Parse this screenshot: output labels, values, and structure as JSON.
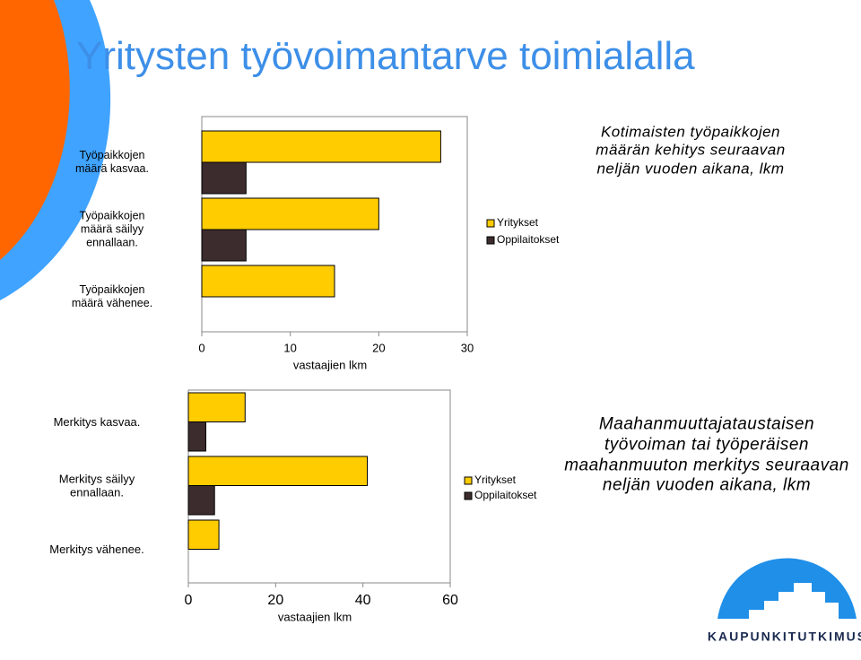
{
  "title": "Yritysten työvoimantarve toimialalla",
  "logo": "KAUPUNKITUTKIMUS",
  "chart_data": [
    {
      "type": "bar",
      "orientation": "horizontal",
      "title": "Kotimaisten työpaikkojen määrän kehitys seuraavan neljän vuoden aikana, lkm",
      "categories": [
        "Työpaikkojen määrä kasvaa.",
        "Työpaikkojen määrä säilyy ennallaan.",
        "Työpaikkojen määrä vähenee."
      ],
      "series": [
        {
          "name": "Yritykset",
          "color": "#ffcc00",
          "values": [
            27,
            20,
            15
          ]
        },
        {
          "name": "Oppilaitokset",
          "color": "#3d2c2e",
          "values": [
            5,
            5,
            0
          ]
        }
      ],
      "xlabel": "vastaajien lkm",
      "xlim": [
        0,
        30
      ],
      "xticks": [
        0,
        10,
        20,
        30
      ],
      "legend": "right"
    },
    {
      "type": "bar",
      "orientation": "horizontal",
      "title": "Maahanmuuttajataustaisen työvoiman tai työperäisen maahanmuuton merkitys seuraavan neljän vuoden aikana, lkm",
      "categories": [
        "Merkitys kasvaa.",
        "Merkitys säilyy ennallaan.",
        "Merkitys vähenee."
      ],
      "series": [
        {
          "name": "Yritykset",
          "color": "#ffcc00",
          "values": [
            13,
            41,
            7
          ]
        },
        {
          "name": "Oppilaitokset",
          "color": "#3d2c2e",
          "values": [
            4,
            6,
            0
          ]
        }
      ],
      "xlabel": "vastaajien lkm",
      "xlim": [
        0,
        60
      ],
      "xticks": [
        0,
        20,
        40,
        60
      ],
      "legend": "right"
    }
  ]
}
